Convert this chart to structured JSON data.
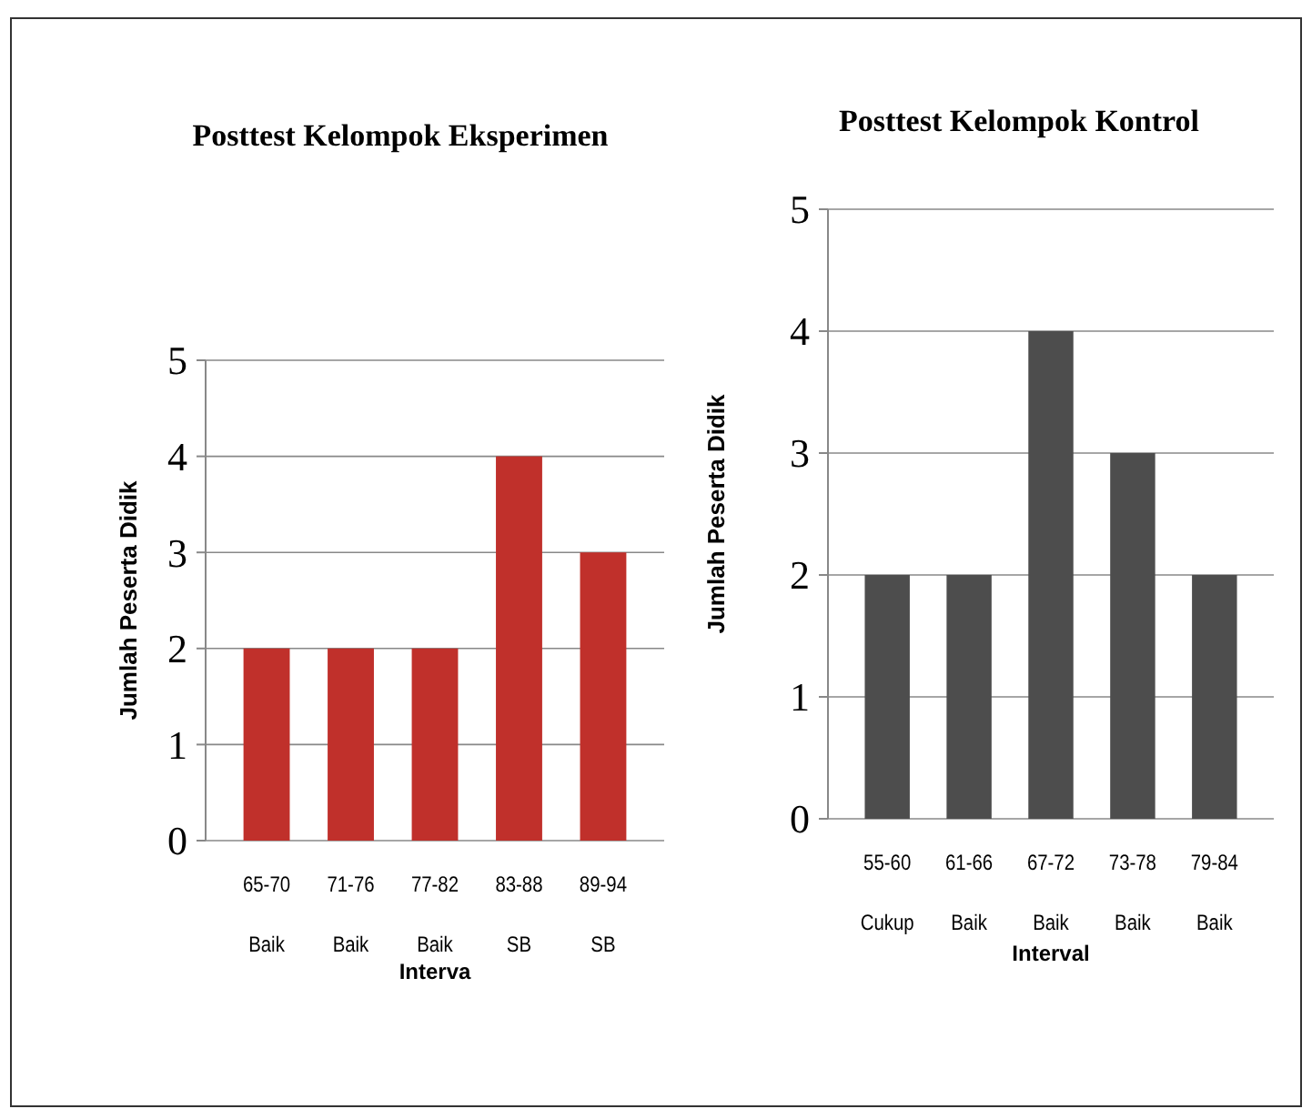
{
  "chart_data": [
    {
      "type": "bar",
      "title": "Posttest Kelompok Eksperimen",
      "xlabel": "Interva",
      "ylabel": "Jumlah Peserta Didik",
      "categories": [
        "65-70\nBaik",
        "71-76\nBaik",
        "77-82\nBaik",
        "83-88\nSB",
        "89-94\nSB"
      ],
      "values": [
        2,
        2,
        2,
        4,
        3
      ],
      "color": "#c0302b",
      "ylim": [
        0,
        5
      ],
      "yticks": [
        0,
        1,
        2,
        3,
        4,
        5
      ],
      "grid": "y"
    },
    {
      "type": "bar",
      "title": "Posttest Kelompok Kontrol",
      "xlabel": "Interval",
      "ylabel": "Jumlah Peserta Didik",
      "categories": [
        "55-60\nCukup",
        "61-66\nBaik",
        "67-72\nBaik",
        "73-78\nBaik",
        "79-84\nBaik"
      ],
      "values": [
        2,
        2,
        4,
        3,
        2
      ],
      "color": "#4d4d4d",
      "ylim": [
        0,
        5
      ],
      "yticks": [
        0,
        1,
        2,
        3,
        4,
        5
      ],
      "grid": "y"
    }
  ]
}
